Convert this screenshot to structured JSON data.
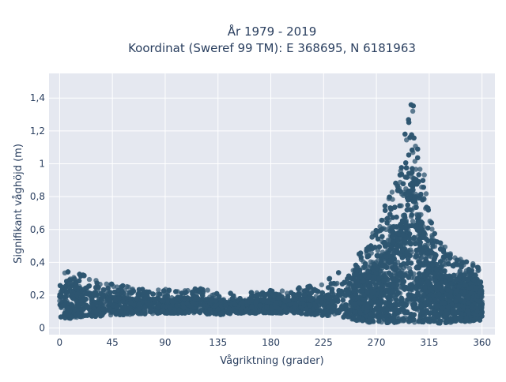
{
  "chart_data": {
    "type": "scatter",
    "title_lines": [
      "År 1979 - 2019",
      "Koordinat (Sweref 99 TM): E 368695, N 6181963"
    ],
    "xlabel": "Vågriktning (grader)",
    "ylabel": "Signifikant våghöjd (m)",
    "xlim": [
      -9,
      371
    ],
    "ylim": [
      -0.04,
      1.55
    ],
    "x_ticks": [
      0,
      45,
      90,
      135,
      180,
      225,
      270,
      315,
      360
    ],
    "x_tick_labels": [
      "0",
      "45",
      "90",
      "135",
      "180",
      "225",
      "270",
      "315",
      "360"
    ],
    "y_ticks": [
      0,
      0.2,
      0.4,
      0.6,
      0.8,
      1.0,
      1.2,
      1.4
    ],
    "y_tick_labels": [
      "0",
      "0,2",
      "0,4",
      "0,6",
      "0,8",
      "1",
      "1,2",
      "1,4"
    ],
    "grid": true,
    "marker_color": "#2e5570",
    "plot_background": "#e5e8f0",
    "envelope": {
      "description_free": true,
      "x": [
        0,
        10,
        20,
        30,
        45,
        60,
        90,
        120,
        135,
        150,
        170,
        180,
        200,
        220,
        235,
        250,
        260,
        270,
        280,
        290,
        295,
        298,
        300,
        303,
        306,
        310,
        315,
        320,
        330,
        340,
        350,
        360
      ],
      "y_upper": [
        0.36,
        0.34,
        0.33,
        0.3,
        0.27,
        0.25,
        0.24,
        0.24,
        0.22,
        0.21,
        0.22,
        0.23,
        0.24,
        0.27,
        0.33,
        0.4,
        0.5,
        0.62,
        0.8,
        1.05,
        1.22,
        1.38,
        1.48,
        1.36,
        1.18,
        1.0,
        0.76,
        0.58,
        0.48,
        0.43,
        0.4,
        0.37
      ],
      "y_lower": [
        0.06,
        0.06,
        0.07,
        0.07,
        0.08,
        0.08,
        0.09,
        0.09,
        0.08,
        0.09,
        0.09,
        0.09,
        0.09,
        0.08,
        0.07,
        0.05,
        0.04,
        0.03,
        0.03,
        0.03,
        0.03,
        0.03,
        0.03,
        0.03,
        0.03,
        0.03,
        0.03,
        0.03,
        0.03,
        0.04,
        0.04,
        0.05
      ]
    }
  }
}
